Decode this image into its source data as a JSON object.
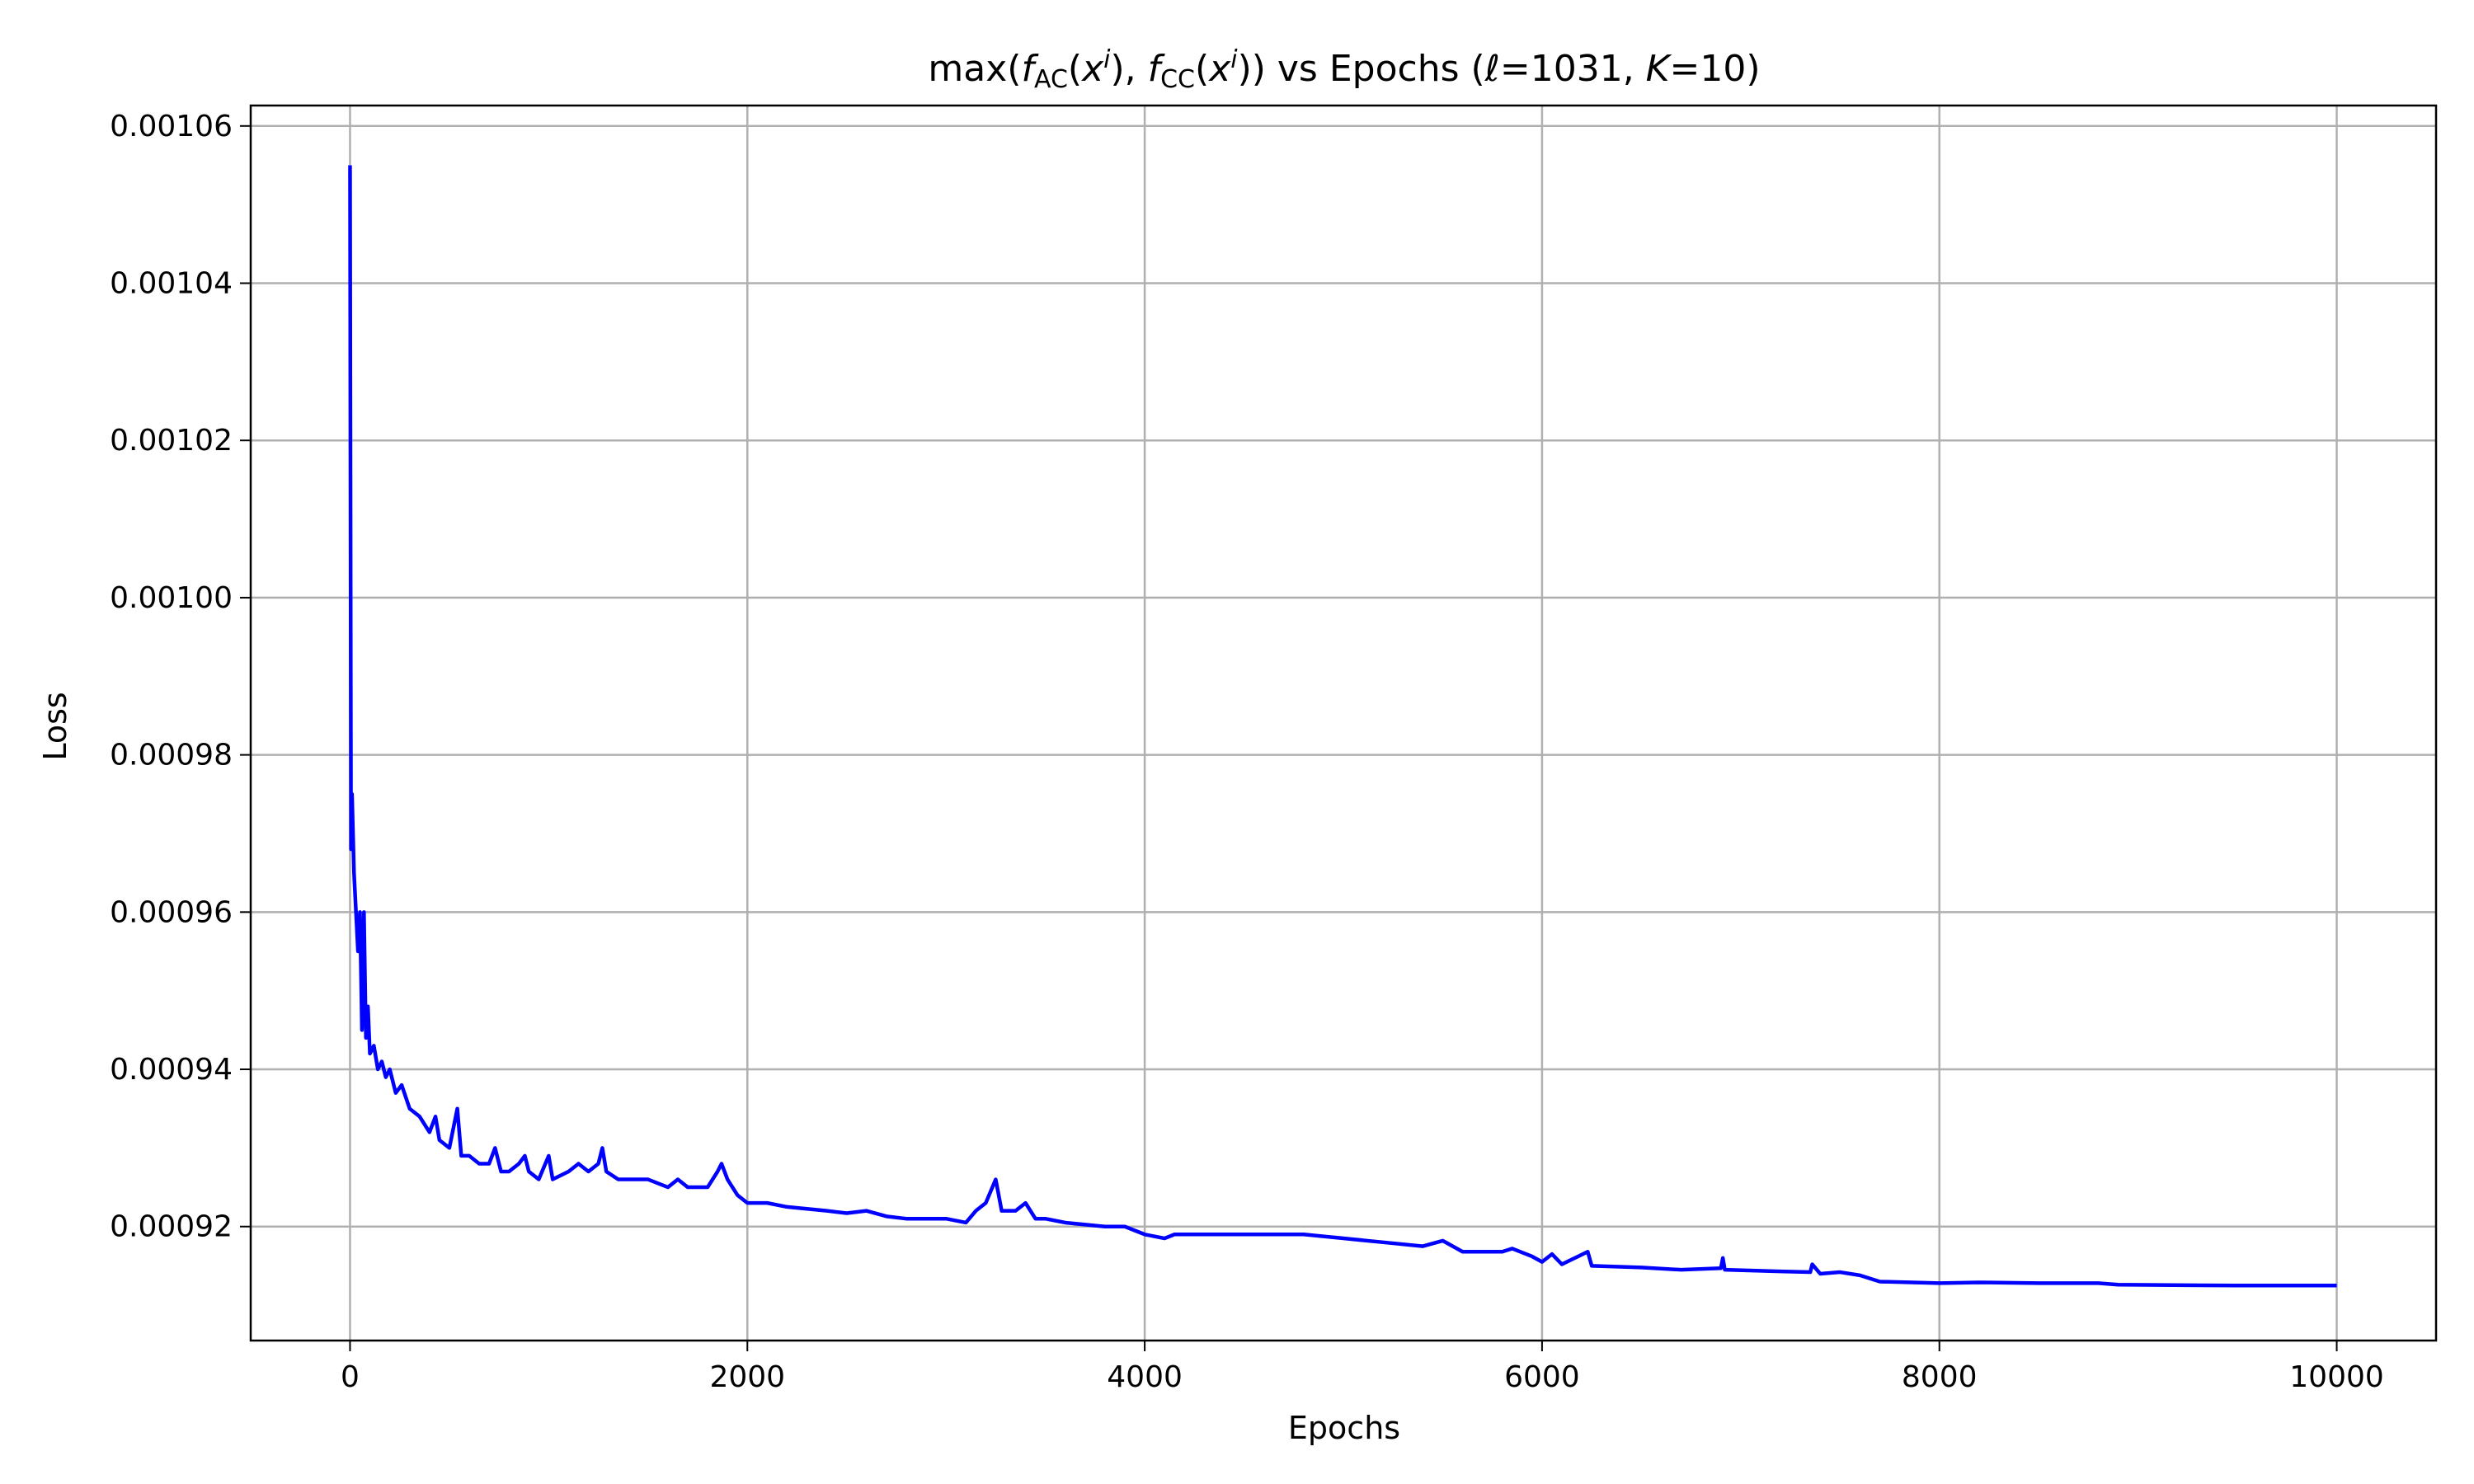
{
  "chart_data": {
    "type": "line",
    "title": [
      "max(",
      "f",
      "AC",
      "(",
      "x",
      "i",
      "), ",
      "f",
      "CC",
      "(",
      "x",
      "i",
      ")) vs Epochs (",
      "ℓ",
      "=1031, ",
      "K",
      "=10)"
    ],
    "xlabel": "Epochs",
    "ylabel": "Loss",
    "xlim": [
      -500,
      10500
    ],
    "ylim": [
      0.0009055,
      0.0010626
    ],
    "xticks": [
      0,
      2000,
      4000,
      6000,
      8000,
      10000
    ],
    "yticks": [
      0.00092,
      0.00094,
      0.00096,
      0.00098,
      {
        "value": 0.001,
        "label": "0.00100"
      },
      0.00102,
      0.00104,
      0.00106
    ],
    "grid": true,
    "series": [
      {
        "color": "#0000ff",
        "x": [
          0,
          5,
          10,
          20,
          30,
          40,
          50,
          60,
          70,
          80,
          90,
          100,
          120,
          140,
          160,
          180,
          200,
          230,
          260,
          300,
          350,
          400,
          430,
          450,
          500,
          540,
          560,
          600,
          650,
          700,
          730,
          760,
          800,
          850,
          880,
          900,
          950,
          1000,
          1020,
          1100,
          1150,
          1200,
          1250,
          1270,
          1290,
          1350,
          1400,
          1500,
          1600,
          1650,
          1700,
          1800,
          1850,
          1870,
          1900,
          1950,
          2000,
          2100,
          2200,
          2400,
          2500,
          2600,
          2700,
          2800,
          3000,
          3100,
          3150,
          3200,
          3250,
          3280,
          3350,
          3400,
          3450,
          3500,
          3600,
          3800,
          3900,
          4000,
          4100,
          4150,
          4200,
          4500,
          4800,
          5000,
          5200,
          5400,
          5500,
          5600,
          5800,
          5850,
          5950,
          6000,
          6050,
          6100,
          6230,
          6250,
          6500,
          6700,
          6900,
          6910,
          6920,
          7200,
          7350,
          7360,
          7400,
          7500,
          7600,
          7700,
          8000,
          8200,
          8500,
          8800,
          8900,
          9500,
          10000
        ],
        "values": [
          0.001055,
          0.000968,
          0.000975,
          0.000965,
          0.00096,
          0.000955,
          0.00096,
          0.000945,
          0.00096,
          0.000944,
          0.000948,
          0.000942,
          0.000943,
          0.00094,
          0.000941,
          0.000939,
          0.00094,
          0.000937,
          0.000938,
          0.000935,
          0.000934,
          0.000932,
          0.000934,
          0.000931,
          0.00093,
          0.000935,
          0.000929,
          0.000929,
          0.000928,
          0.000928,
          0.00093,
          0.000927,
          0.000927,
          0.000928,
          0.000929,
          0.000927,
          0.000926,
          0.000929,
          0.000926,
          0.000927,
          0.000928,
          0.000927,
          0.000928,
          0.00093,
          0.000927,
          0.000926,
          0.000926,
          0.000926,
          0.000925,
          0.000926,
          0.000925,
          0.000925,
          0.000927,
          0.000928,
          0.000926,
          0.000924,
          0.000923,
          0.000923,
          0.0009225,
          0.000922,
          0.0009217,
          0.000922,
          0.0009213,
          0.000921,
          0.000921,
          0.0009205,
          0.000922,
          0.000923,
          0.000926,
          0.000922,
          0.000922,
          0.000923,
          0.000921,
          0.000921,
          0.0009205,
          0.00092,
          0.00092,
          0.000919,
          0.0009185,
          0.000919,
          0.000919,
          0.000919,
          0.000919,
          0.0009185,
          0.000918,
          0.0009175,
          0.0009182,
          0.0009168,
          0.0009168,
          0.0009172,
          0.0009162,
          0.0009155,
          0.0009165,
          0.0009152,
          0.0009168,
          0.000915,
          0.0009148,
          0.0009145,
          0.0009147,
          0.000916,
          0.0009145,
          0.0009143,
          0.0009142,
          0.0009152,
          0.000914,
          0.0009142,
          0.0009138,
          0.000913,
          0.0009128,
          0.0009129,
          0.0009128,
          0.0009128,
          0.0009126,
          0.0009125,
          0.0009125
        ]
      }
    ]
  }
}
